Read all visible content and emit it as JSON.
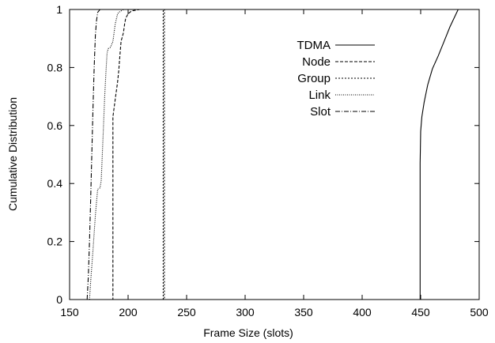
{
  "chart_data": {
    "type": "line",
    "title": "",
    "xlabel": "Frame Size (slots)",
    "ylabel": "Cumulative Distribution",
    "xlim": [
      150,
      500
    ],
    "ylim": [
      0,
      1
    ],
    "xticks": [
      150,
      200,
      250,
      300,
      350,
      400,
      450,
      500
    ],
    "yticks": [
      0,
      0.2,
      0.4,
      0.6,
      0.8,
      1
    ],
    "grid": false,
    "legend_position": "top-right",
    "series": [
      {
        "name": "TDMA",
        "dash": "solid",
        "x": [
          449.5,
          449.5,
          450,
          451,
          453,
          456,
          460,
          465,
          470,
          475,
          482
        ],
        "y": [
          0,
          0.47,
          0.58,
          0.63,
          0.68,
          0.74,
          0.795,
          0.84,
          0.89,
          0.94,
          1.0
        ]
      },
      {
        "name": "Node",
        "dash": "dashed",
        "x": [
          186,
          187,
          187,
          189,
          191,
          192,
          193,
          194,
          196,
          197,
          198,
          200,
          203,
          210
        ],
        "y": [
          0,
          0,
          0.63,
          0.69,
          0.75,
          0.79,
          0.84,
          0.89,
          0.92,
          0.95,
          0.97,
          0.985,
          0.995,
          1.0
        ]
      },
      {
        "name": "Group",
        "dash": "dotted",
        "x": [
          230,
          230,
          231,
          231
        ],
        "y": [
          0,
          1,
          1,
          0
        ]
      },
      {
        "name": "Link",
        "dash": "fine-dotted",
        "x": [
          167,
          168,
          170,
          172,
          174,
          176,
          177,
          178,
          179,
          180,
          181,
          182,
          183,
          185,
          187,
          189,
          191,
          192,
          194,
          196
        ],
        "y": [
          0,
          0.06,
          0.17,
          0.29,
          0.38,
          0.385,
          0.41,
          0.5,
          0.6,
          0.7,
          0.78,
          0.85,
          0.865,
          0.87,
          0.89,
          0.95,
          0.985,
          0.99,
          0.995,
          1.0
        ]
      },
      {
        "name": "Slot",
        "dash": "dash-dot",
        "x": [
          165,
          166,
          167,
          168,
          169,
          170,
          171,
          172,
          173,
          174,
          175,
          176
        ],
        "y": [
          0,
          0.08,
          0.2,
          0.34,
          0.5,
          0.66,
          0.8,
          0.91,
          0.96,
          0.99,
          0.995,
          1.0
        ]
      }
    ]
  },
  "colors": {
    "line": "#000000",
    "background": "#ffffff"
  }
}
